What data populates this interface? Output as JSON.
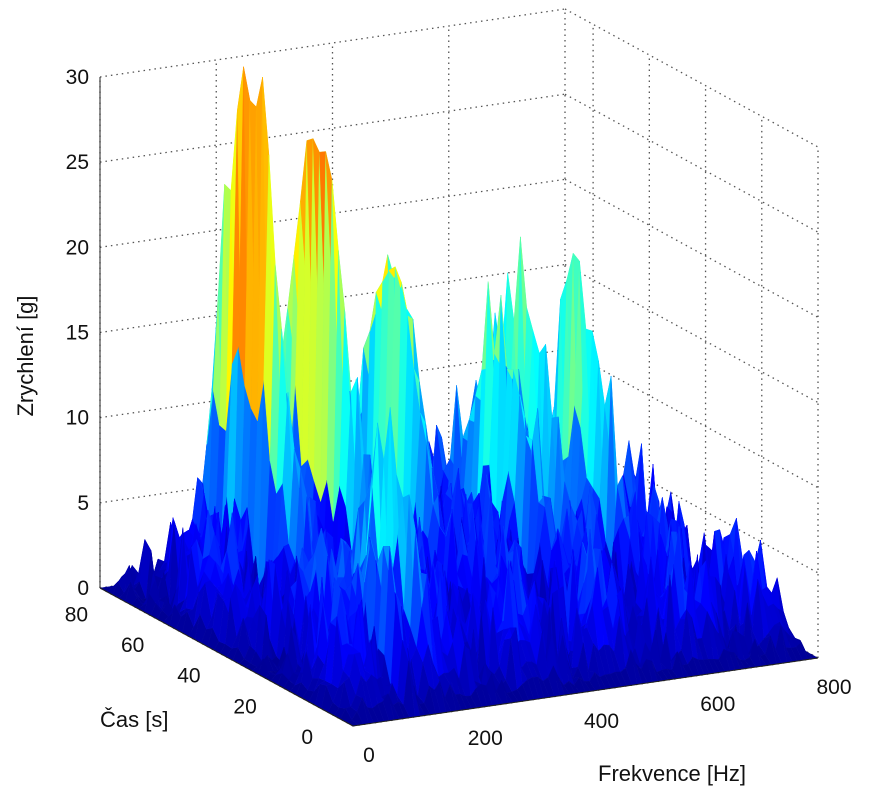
{
  "chart_data": {
    "type": "surface",
    "title": "",
    "xlabel": "Frekvence [Hz]",
    "ylabel": "Čas [s]",
    "zlabel": "Zrychlení [g]",
    "xlim": [
      0,
      800
    ],
    "ylim": [
      0,
      90
    ],
    "zlim": [
      0,
      30
    ],
    "x_ticks": [
      "0",
      "200",
      "400",
      "600",
      "800"
    ],
    "y_ticks": [
      "0",
      "20",
      "40",
      "60",
      "80"
    ],
    "z_ticks": [
      "0",
      "5",
      "10",
      "15",
      "20",
      "25",
      "30"
    ],
    "grid": true,
    "colormap": "jet",
    "colormap_colors": [
      "#00008f",
      "#0000ff",
      "#0080ff",
      "#00ffff",
      "#80ff80",
      "#ffff00",
      "#ff8000",
      "#ff0000",
      "#800000"
    ],
    "peaks": [
      {
        "frequency": 160,
        "time": 70,
        "acceleration": 28.5
      },
      {
        "frequency": 260,
        "time": 65,
        "acceleration": 26.5
      },
      {
        "frequency": 360,
        "time": 60,
        "acceleration": 22.5
      },
      {
        "frequency": 520,
        "time": 55,
        "acceleration": 17.5
      },
      {
        "frequency": 560,
        "time": 55,
        "acceleration": 16.5
      },
      {
        "frequency": 640,
        "time": 50,
        "acceleration": 13.5
      },
      {
        "frequency": 150,
        "time": 20,
        "acceleration": 11.5
      },
      {
        "frequency": 110,
        "time": 10,
        "acceleration": 9.5
      }
    ]
  }
}
